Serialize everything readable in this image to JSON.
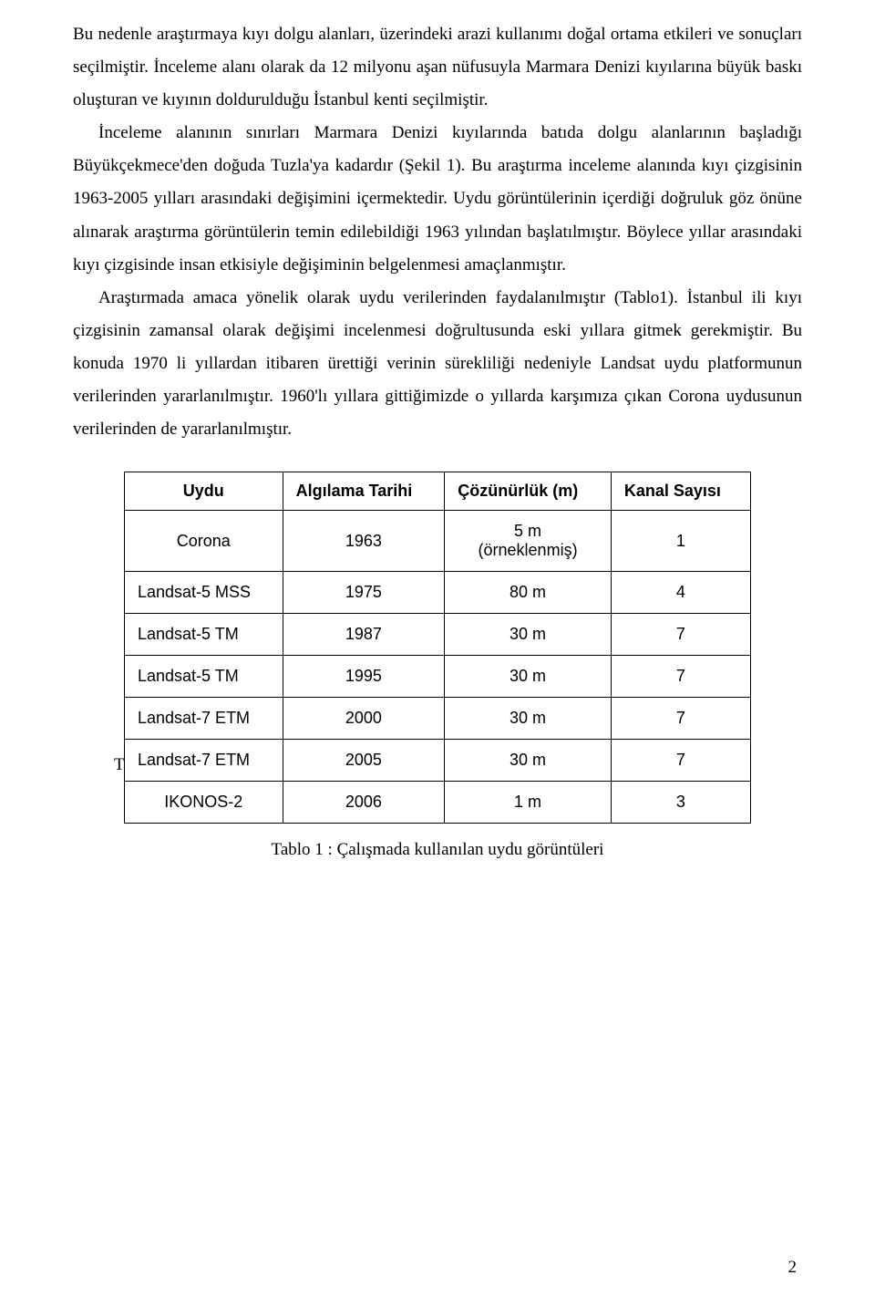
{
  "paragraphs": {
    "p1": "Bu nedenle araştırmaya kıyı dolgu alanları, üzerindeki arazi kullanımı doğal ortama etkileri ve sonuçları seçilmiştir. İnceleme alanı olarak da 12 milyonu aşan nüfusuyla Marmara Denizi kıyılarına büyük baskı oluşturan ve kıyının doldurulduğu İstanbul kenti seçilmiştir.",
    "p2": "İnceleme alanının sınırları Marmara Denizi kıyılarında batıda dolgu alanlarının başladığı Büyükçekmece'den doğuda Tuzla'ya kadardır (Şekil 1). Bu araştırma inceleme alanında kıyı çizgisinin 1963-2005 yılları arasındaki değişimini içermektedir. Uydu görüntülerinin içerdiği doğruluk göz önüne alınarak araştırma görüntülerin temin edilebildiği 1963 yılından başlatılmıştır. Böylece yıllar arasındaki kıyı çizgisinde insan etkisiyle değişiminin belgelenmesi amaçlanmıştır.",
    "p3": "Araştırmada amaca yönelik olarak uydu verilerinden faydalanılmıştır (Tablo1). İstanbul ili kıyı çizgisinin zamansal olarak değişimi incelenmesi doğrultusunda eski yıllara gitmek gerekmiştir. Bu konuda 1970 li yıllardan itibaren ürettiği verinin sürekliliği nedeniyle Landsat uydu platformunun verilerinden yararlanılmıştır. 1960'lı yıllara gittiğimizde o yıllarda karşımıza çıkan Corona uydusunun verilerinden de yararlanılmıştır."
  },
  "table": {
    "columns": [
      "Uydu",
      "Algılama Tarihi",
      "Çözünürlük (m)",
      "Kanal Sayısı"
    ],
    "rows": [
      {
        "uydu": "Corona",
        "tarih": "1963",
        "coz": "5 m\n(örneklenmiş)",
        "kanal": "1",
        "uydu_align": "center"
      },
      {
        "uydu": "Landsat-5 MSS",
        "tarih": "1975",
        "coz": "80 m",
        "kanal": "4",
        "uydu_align": "left"
      },
      {
        "uydu": "Landsat-5 TM",
        "tarih": "1987",
        "coz": "30 m",
        "kanal": "7",
        "uydu_align": "left"
      },
      {
        "uydu": "Landsat-5 TM",
        "tarih": "1995",
        "coz": "30 m",
        "kanal": "7",
        "uydu_align": "left"
      },
      {
        "uydu": "Landsat-7 ETM",
        "tarih": "2000",
        "coz": "30 m",
        "kanal": "7",
        "uydu_align": "left"
      },
      {
        "uydu": "Landsat-7 ETM",
        "tarih": "2005",
        "coz": "30 m",
        "kanal": "7",
        "uydu_align": "left",
        "t_prefix": "T"
      },
      {
        "uydu": "IKONOS-2",
        "tarih": "2006",
        "coz": "1 m",
        "kanal": "3",
        "uydu_align": "center"
      }
    ]
  },
  "caption": "Tablo 1 : Çalışmada kullanılan uydu görüntüleri",
  "page_number": "2"
}
